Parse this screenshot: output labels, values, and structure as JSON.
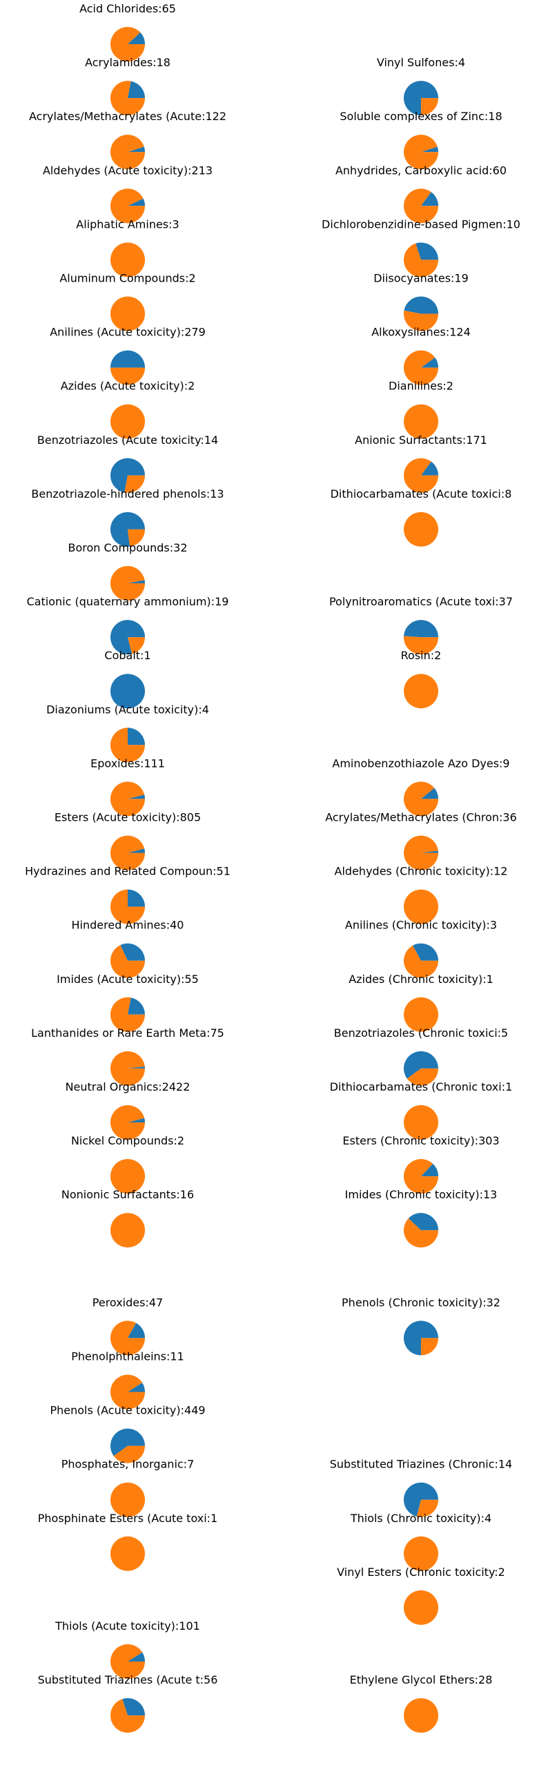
{
  "colors": {
    "series_a": "#1f77b4",
    "series_b": "#ff7f0e"
  },
  "chart_data": {
    "type": "pie",
    "layout": "small-multiples",
    "slice_order": [
      "series_a",
      "series_b"
    ],
    "panels": [
      {
        "col": 0,
        "row": 0,
        "title": "Acid Chlorides:65",
        "a_fraction": 0.12
      },
      {
        "col": 0,
        "row": 1,
        "title": "Acrylamides:18",
        "a_fraction": 0.22
      },
      {
        "col": 0,
        "row": 2,
        "title": "Acrylates/Methacrylates (Acute:122",
        "a_fraction": 0.05
      },
      {
        "col": 0,
        "row": 3,
        "title": "Aldehydes (Acute toxicity):213",
        "a_fraction": 0.07
      },
      {
        "col": 0,
        "row": 4,
        "title": "Aliphatic Amines:3",
        "a_fraction": 0.0
      },
      {
        "col": 0,
        "row": 5,
        "title": "Aluminum Compounds:2",
        "a_fraction": 0.0
      },
      {
        "col": 0,
        "row": 6,
        "title": "Anilines (Acute toxicity):279",
        "a_fraction": 0.5
      },
      {
        "col": 0,
        "row": 7,
        "title": "Azides (Acute toxicity):2",
        "a_fraction": 0.0
      },
      {
        "col": 0,
        "row": 8,
        "title": "Benzotriazoles (Acute toxicity:14",
        "a_fraction": 0.72
      },
      {
        "col": 0,
        "row": 9,
        "title": "Benzotriazole-hindered phenols:13",
        "a_fraction": 0.77
      },
      {
        "col": 0,
        "row": 10,
        "title": "Boron Compounds:32",
        "a_fraction": 0.03
      },
      {
        "col": 0,
        "row": 11,
        "title": "Cationic (quaternary ammonium):19",
        "a_fraction": 0.79
      },
      {
        "col": 0,
        "row": 12,
        "title": "Cobalt:1",
        "a_fraction": 1.0
      },
      {
        "col": 0,
        "row": 13,
        "title": "Diazoniums (Acute toxicity):4",
        "a_fraction": 0.25
      },
      {
        "col": 0,
        "row": 14,
        "title": "Epoxides:111",
        "a_fraction": 0.04
      },
      {
        "col": 0,
        "row": 15,
        "title": "Esters (Acute toxicity):805",
        "a_fraction": 0.04
      },
      {
        "col": 0,
        "row": 16,
        "title": "Hydrazines and Related Compoun:51",
        "a_fraction": 0.25
      },
      {
        "col": 0,
        "row": 17,
        "title": "Hindered Amines:40",
        "a_fraction": 0.32
      },
      {
        "col": 0,
        "row": 18,
        "title": "Imides (Acute toxicity):55",
        "a_fraction": 0.22
      },
      {
        "col": 0,
        "row": 19,
        "title": "Lanthanides or Rare Earth Meta:75",
        "a_fraction": 0.02
      },
      {
        "col": 0,
        "row": 20,
        "title": "Neutral Organics:2422",
        "a_fraction": 0.04
      },
      {
        "col": 0,
        "row": 21,
        "title": "Nickel Compounds:2",
        "a_fraction": 0.0
      },
      {
        "col": 0,
        "row": 22,
        "title": "Nonionic Surfactants:16",
        "a_fraction": 0.0
      },
      {
        "col": 0,
        "row": 24,
        "title": "Peroxides:47",
        "a_fraction": 0.17
      },
      {
        "col": 0,
        "row": 25,
        "title": "Phenolphthaleins:11",
        "a_fraction": 0.09
      },
      {
        "col": 0,
        "row": 26,
        "title": "Phenols (Acute toxicity):449",
        "a_fraction": 0.6
      },
      {
        "col": 0,
        "row": 27,
        "title": "Phosphates, Inorganic:7",
        "a_fraction": 0.0
      },
      {
        "col": 0,
        "row": 28,
        "title": "Phosphinate Esters (Acute toxi:1",
        "a_fraction": 0.0
      },
      {
        "col": 0,
        "row": 30,
        "title": "Thiols (Acute toxicity):101",
        "a_fraction": 0.09
      },
      {
        "col": 0,
        "row": 31,
        "title": "Substituted Triazines (Acute t:56",
        "a_fraction": 0.3
      },
      {
        "col": 1,
        "row": 1,
        "title": "Vinyl Sulfones:4",
        "a_fraction": 0.75
      },
      {
        "col": 1,
        "row": 2,
        "title": "Soluble complexes of Zinc:18",
        "a_fraction": 0.05
      },
      {
        "col": 1,
        "row": 3,
        "title": "Anhydrides, Carboxylic acid:60",
        "a_fraction": 0.15
      },
      {
        "col": 1,
        "row": 4,
        "title": "Dichlorobenzidine-based Pigmen:10",
        "a_fraction": 0.3
      },
      {
        "col": 1,
        "row": 5,
        "title": "Diisocyanates:19",
        "a_fraction": 0.47
      },
      {
        "col": 1,
        "row": 6,
        "title": "Alkoxysilanes:124",
        "a_fraction": 0.1
      },
      {
        "col": 1,
        "row": 7,
        "title": "Dianilines:2",
        "a_fraction": 0.0
      },
      {
        "col": 1,
        "row": 8,
        "title": "Anionic Surfactants:171",
        "a_fraction": 0.15
      },
      {
        "col": 1,
        "row": 9,
        "title": "Dithiocarbamates (Acute toxici:8",
        "a_fraction": 0.0
      },
      {
        "col": 1,
        "row": 11,
        "title": "Polynitroaromatics (Acute toxi:37",
        "a_fraction": 0.49
      },
      {
        "col": 1,
        "row": 12,
        "title": "Rosin:2",
        "a_fraction": 0.0
      },
      {
        "col": 1,
        "row": 14,
        "title": "Aminobenzothiazole Azo Dyes:9",
        "a_fraction": 0.11
      },
      {
        "col": 1,
        "row": 15,
        "title": "Acrylates/Methacrylates (Chron:36",
        "a_fraction": 0.02
      },
      {
        "col": 1,
        "row": 16,
        "title": "Aldehydes (Chronic toxicity):12",
        "a_fraction": 0.0
      },
      {
        "col": 1,
        "row": 17,
        "title": "Anilines (Chronic toxicity):3",
        "a_fraction": 0.33
      },
      {
        "col": 1,
        "row": 18,
        "title": "Azides (Chronic toxicity):1",
        "a_fraction": 0.0
      },
      {
        "col": 1,
        "row": 19,
        "title": "Benzotriazoles (Chronic toxici:5",
        "a_fraction": 0.6
      },
      {
        "col": 1,
        "row": 20,
        "title": "Dithiocarbamates (Chronic toxi:1",
        "a_fraction": 0.0
      },
      {
        "col": 1,
        "row": 21,
        "title": "Esters (Chronic toxicity):303",
        "a_fraction": 0.13
      },
      {
        "col": 1,
        "row": 22,
        "title": "Imides (Chronic toxicity):13",
        "a_fraction": 0.38
      },
      {
        "col": 1,
        "row": 24,
        "title": "Phenols (Chronic toxicity):32",
        "a_fraction": 0.75
      },
      {
        "col": 1,
        "row": 27,
        "title": "Substituted Triazines (Chronic:14",
        "a_fraction": 0.71
      },
      {
        "col": 1,
        "row": 28,
        "title": "Thiols (Chronic toxicity):4",
        "a_fraction": 0.0
      },
      {
        "col": 1,
        "row": 29,
        "title": "Vinyl Esters (Chronic toxicity:2",
        "a_fraction": 0.0
      },
      {
        "col": 1,
        "row": 31,
        "title": "Ethylene Glycol Ethers:28",
        "a_fraction": 0.0
      }
    ]
  }
}
